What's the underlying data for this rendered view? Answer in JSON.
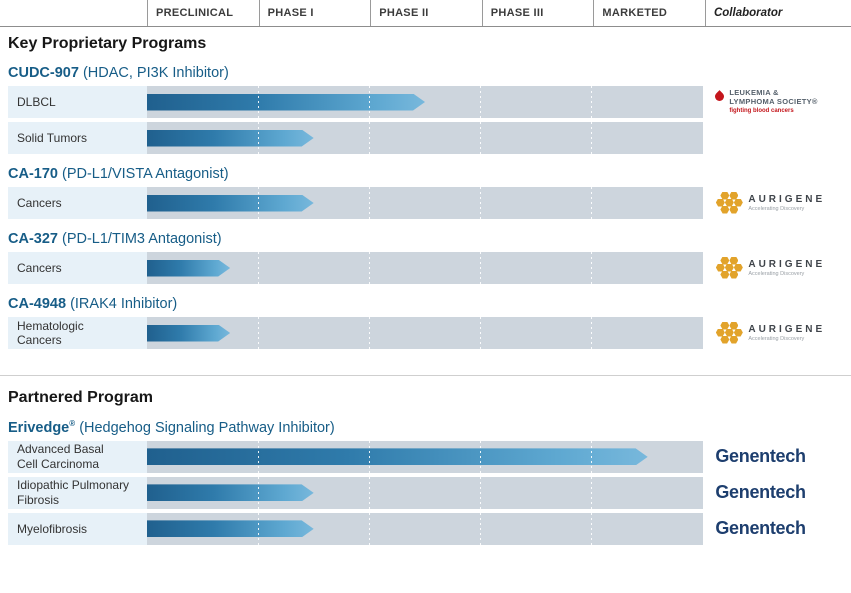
{
  "header": {
    "phases": [
      "PRECLINICAL",
      "PHASE I",
      "PHASE II",
      "PHASE III",
      "MARKETED"
    ],
    "collaborator": "Collaborator"
  },
  "sections": [
    {
      "title": "Key Proprietary Programs",
      "programs": [
        {
          "name": "CUDC-907",
          "detail": "(HDAC, PI3K Inhibitor)",
          "rows": [
            {
              "indication": "DLBCL"
            },
            {
              "indication": "Solid Tumors"
            }
          ]
        },
        {
          "name": "CA-170",
          "detail": "(PD-L1/VISTA Antagonist)",
          "rows": [
            {
              "indication": "Cancers"
            }
          ]
        },
        {
          "name": "CA-327",
          "detail": "(PD-L1/TIM3 Antagonist)",
          "rows": [
            {
              "indication": "Cancers"
            }
          ]
        },
        {
          "name": "CA-4948",
          "detail": "(IRAK4 Inhibitor)",
          "rows": [
            {
              "indication": "Hematologic\nCancers"
            }
          ]
        }
      ]
    },
    {
      "title": "Partnered Program",
      "programs": [
        {
          "name": "Erivedge",
          "reg": "®",
          "detail": "(Hedgehog Signaling Pathway Inhibitor)",
          "rows": [
            {
              "indication": "Advanced Basal\nCell Carcinoma"
            },
            {
              "indication": "Idiopathic Pulmonary\nFibrosis"
            },
            {
              "indication": "Myelofibrosis"
            }
          ]
        }
      ]
    }
  ],
  "logos": {
    "lls": {
      "line1": "LEUKEMIA &",
      "line2": "LYMPHOMA SOCIETY®",
      "tagline": "fighting blood cancers"
    },
    "aurigene": {
      "name": "AURIGENE",
      "tagline": "Accelerating Discovery"
    },
    "genentech": {
      "name": "Genentech"
    }
  },
  "colors": {
    "bar_gradient_start": "#20608e",
    "bar_gradient_end": "#78b8dc",
    "track": "#cdd5dd",
    "label_bg": "#e7f1f8",
    "title_blue": "#175d87",
    "genentech_navy": "#1d3e6e",
    "aurigene_gold": "#e2a32b",
    "lls_red": "#c4161c"
  },
  "chart_data": {
    "type": "bar",
    "orientation": "horizontal",
    "title": "Drug development pipeline by clinical phase",
    "x_axis_phases": [
      "PRECLINICAL",
      "PHASE I",
      "PHASE II",
      "PHASE III",
      "MARKETED"
    ],
    "x_range_phase_units": [
      0,
      5
    ],
    "grid": "dotted vertical lines at phase boundaries",
    "legend_position": "none",
    "bars": [
      {
        "program": "CUDC-907",
        "indication": "DLBCL",
        "phase_reached": "Phase II (mid)",
        "progress_phase_units": 2.5,
        "track_pct": 50,
        "collaborator": "Leukemia & Lymphoma Society"
      },
      {
        "program": "CUDC-907",
        "indication": "Solid Tumors",
        "phase_reached": "Phase I (mid)",
        "progress_phase_units": 1.5,
        "track_pct": 30,
        "collaborator": ""
      },
      {
        "program": "CA-170",
        "indication": "Cancers",
        "phase_reached": "Phase I (mid)",
        "progress_phase_units": 1.5,
        "track_pct": 30,
        "collaborator": "Aurigene"
      },
      {
        "program": "CA-327",
        "indication": "Cancers",
        "phase_reached": "Preclinical (late)",
        "progress_phase_units": 0.75,
        "track_pct": 15,
        "collaborator": "Aurigene"
      },
      {
        "program": "CA-4948",
        "indication": "Hematologic Cancers",
        "phase_reached": "Preclinical (late)",
        "progress_phase_units": 0.75,
        "track_pct": 15,
        "collaborator": "Aurigene"
      },
      {
        "program": "Erivedge®",
        "indication": "Advanced Basal Cell Carcinoma",
        "phase_reached": "Marketed",
        "progress_phase_units": 4.5,
        "track_pct": 90,
        "collaborator": "Genentech"
      },
      {
        "program": "Erivedge®",
        "indication": "Idiopathic Pulmonary Fibrosis",
        "phase_reached": "Phase I (mid)",
        "progress_phase_units": 1.5,
        "track_pct": 30,
        "collaborator": "Genentech"
      },
      {
        "program": "Erivedge®",
        "indication": "Myelofibrosis",
        "phase_reached": "Phase I (mid)",
        "progress_phase_units": 1.5,
        "track_pct": 30,
        "collaborator": "Genentech"
      }
    ]
  }
}
